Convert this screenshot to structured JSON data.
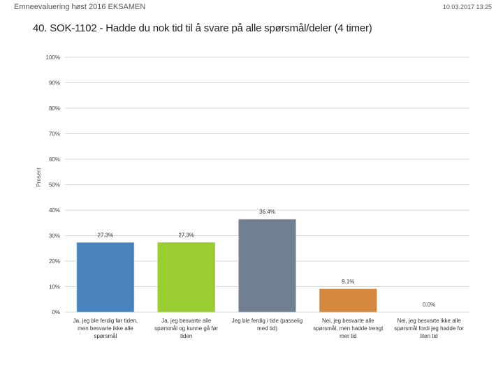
{
  "header": {
    "left": "Emneevaluering høst 2016 EKSAMEN",
    "right": "10.03.2017 13:25"
  },
  "chart_data": {
    "type": "bar",
    "title": "40. SOK-1102 - Hadde du nok tid til å svare på alle spørsmål/deler (4 timer)",
    "ylabel": "Prosent",
    "xlabel": "",
    "ylim": [
      0,
      100
    ],
    "yticks": [
      "0%",
      "10%",
      "20%",
      "30%",
      "40%",
      "50%",
      "60%",
      "70%",
      "80%",
      "90%",
      "100%"
    ],
    "categories": [
      [
        "Ja, jeg ble ferdig før tiden,",
        "men besvarte ikke alle",
        "spørsmål"
      ],
      [
        "Ja, jeg besvarte alle",
        "spørsmål og kunne gå før",
        "tiden"
      ],
      [
        "Jeg ble ferdig i tide (passelig",
        "med tid)"
      ],
      [
        "Nei, jeg besvarte alle",
        "spørsmål, men hadde trengt",
        "mer tid"
      ],
      [
        "Nei, jeg besvarte ikke alle",
        "spørsmål fordi jeg hadde for",
        "liten tid"
      ]
    ],
    "values": [
      27.3,
      27.3,
      36.4,
      9.1,
      0.0
    ],
    "value_labels": [
      "27.3%",
      "27.3%",
      "36.4%",
      "9.1%",
      "0.0%"
    ],
    "colors": [
      "#4a84bf",
      "#9acd32",
      "#708090",
      "#d4893f",
      "#aaaaaa"
    ],
    "grid": true
  }
}
